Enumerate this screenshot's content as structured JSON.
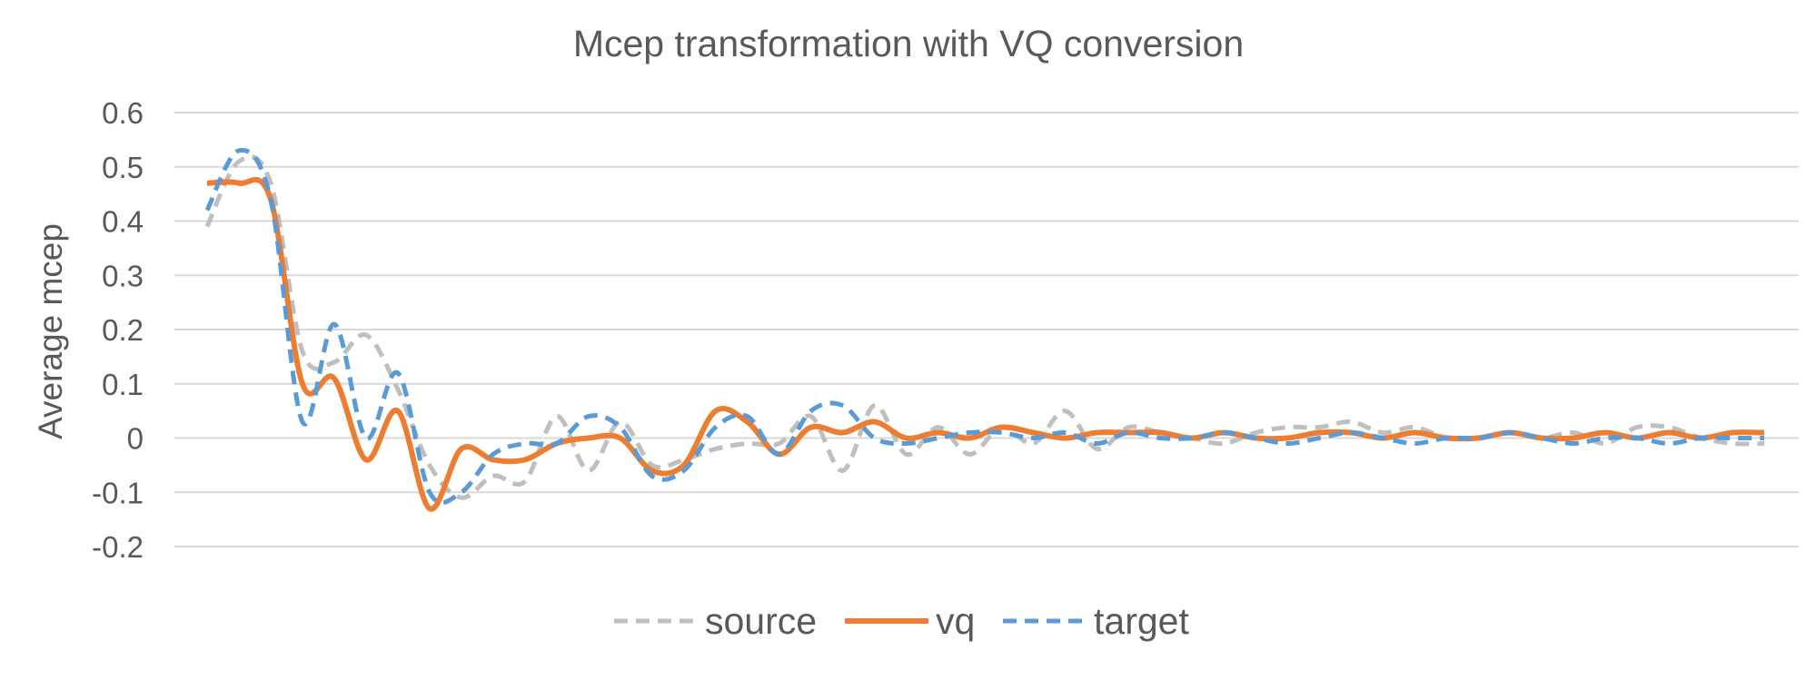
{
  "chart_data": {
    "type": "line",
    "title": "Mcep transformation with VQ conversion",
    "xlabel": "",
    "ylabel": "Average mcep",
    "ylim": [
      -0.2,
      0.6
    ],
    "yticks": [
      0.6,
      0.5,
      0.4,
      0.3,
      0.2,
      0.1,
      0,
      -0.1,
      -0.2
    ],
    "ytick_labels": [
      "0.6",
      "0.5",
      "0.4",
      "0.3",
      "0.2",
      "0.1",
      "0",
      "-0.1",
      "-0.2"
    ],
    "grid": true,
    "legend_position": "bottom",
    "x": [
      1,
      2,
      3,
      4,
      5,
      6,
      7,
      8,
      9,
      10,
      11,
      12,
      13,
      14,
      15,
      16,
      17,
      18,
      19,
      20,
      21,
      22,
      23,
      24,
      25,
      26,
      27,
      28,
      29,
      30,
      31,
      32,
      33,
      34,
      35,
      36,
      37,
      38,
      39,
      40,
      41,
      42,
      43,
      44,
      45,
      46,
      47,
      48,
      49,
      50
    ],
    "series": [
      {
        "name": "source",
        "color": "#bfbfbf",
        "style": "dashed",
        "values": [
          0.39,
          0.51,
          0.47,
          0.16,
          0.14,
          0.19,
          0.09,
          -0.05,
          -0.11,
          -0.07,
          -0.08,
          0.04,
          -0.06,
          0.03,
          -0.05,
          -0.04,
          -0.02,
          -0.01,
          -0.01,
          0.04,
          -0.06,
          0.06,
          -0.03,
          0.02,
          -0.03,
          0.02,
          -0.01,
          0.05,
          -0.02,
          0.02,
          0.01,
          0.0,
          -0.01,
          0.01,
          0.02,
          0.02,
          0.03,
          0.01,
          0.02,
          0.0,
          0.0,
          0.01,
          0.0,
          0.01,
          -0.01,
          0.02,
          0.02,
          0.0,
          -0.01,
          -0.01
        ]
      },
      {
        "name": "vq",
        "color": "#ed7d31",
        "style": "solid",
        "values": [
          0.47,
          0.47,
          0.44,
          0.1,
          0.11,
          -0.04,
          0.05,
          -0.13,
          -0.02,
          -0.04,
          -0.04,
          -0.01,
          0.0,
          0.0,
          -0.06,
          -0.05,
          0.05,
          0.03,
          -0.03,
          0.02,
          0.01,
          0.03,
          0.0,
          0.01,
          0.0,
          0.02,
          0.01,
          0.0,
          0.01,
          0.01,
          0.01,
          0.0,
          0.01,
          0.0,
          0.0,
          0.01,
          0.01,
          0.0,
          0.01,
          0.0,
          0.0,
          0.01,
          0.0,
          0.0,
          0.01,
          0.0,
          0.01,
          0.0,
          0.01,
          0.01
        ]
      },
      {
        "name": "target",
        "color": "#5b9bd5",
        "style": "dashed",
        "values": [
          0.42,
          0.53,
          0.44,
          0.03,
          0.21,
          0.0,
          0.12,
          -0.1,
          -0.1,
          -0.03,
          -0.01,
          -0.01,
          0.04,
          0.02,
          -0.07,
          -0.06,
          0.02,
          0.04,
          -0.03,
          0.05,
          0.06,
          0.0,
          -0.01,
          0.0,
          0.01,
          0.01,
          0.0,
          0.01,
          -0.01,
          0.01,
          0.0,
          0.0,
          0.01,
          0.0,
          -0.01,
          0.0,
          0.01,
          0.0,
          -0.01,
          0.0,
          0.0,
          0.01,
          0.0,
          -0.01,
          0.0,
          0.0,
          -0.01,
          0.0,
          0.0,
          0.0
        ]
      }
    ]
  }
}
